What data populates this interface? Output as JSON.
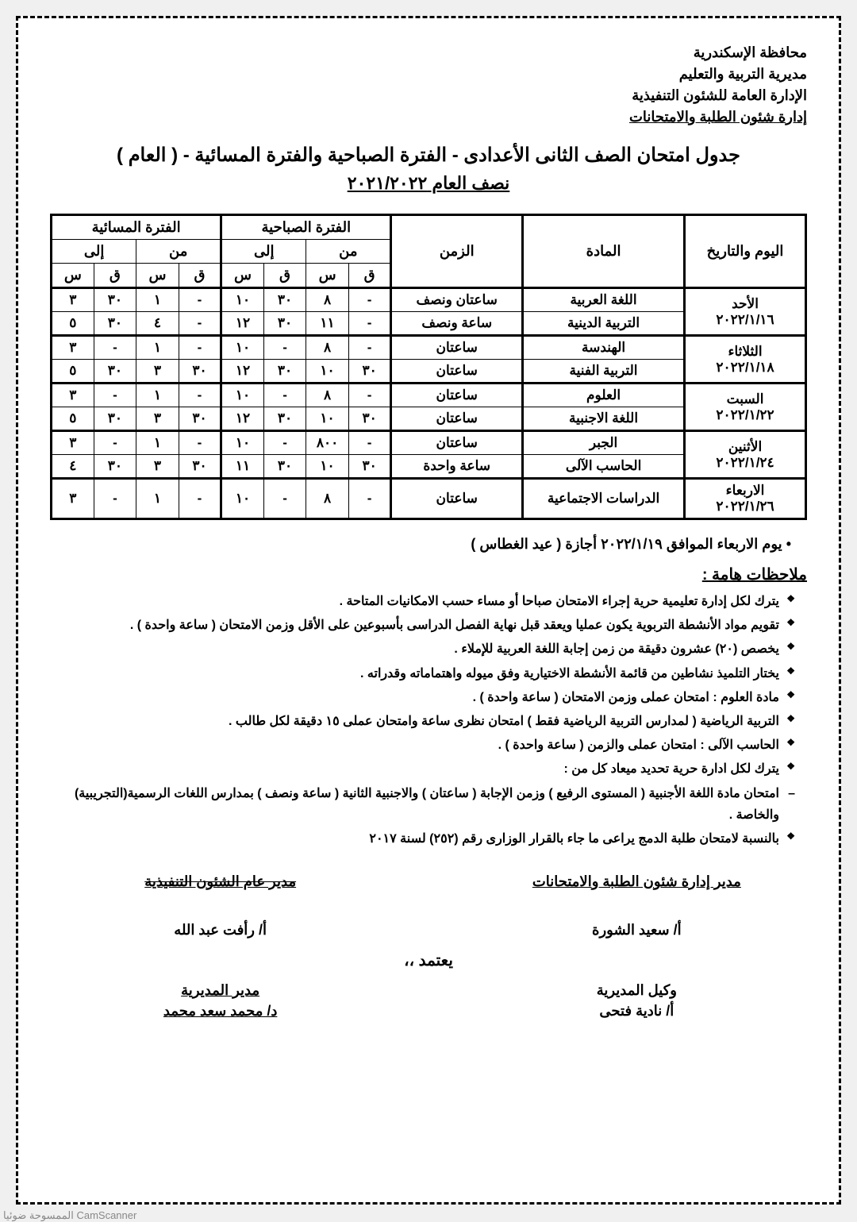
{
  "header": {
    "line1": "محافظة الإسكندرية",
    "line2": "مديرية التربية والتعليم",
    "line3": "الإدارة العامة للشئون التنفيذية",
    "line4": "إدارة شئون الطلبة والامتحانات"
  },
  "title": "جدول امتحان الصف الثانى الأعدادى - الفترة الصباحية والفترة المسائية - ( العام )",
  "subtitle": "نصف العام ٢٠٢١/٢٠٢٢",
  "table": {
    "head": {
      "day_date": "اليوم والتاريخ",
      "subject": "المادة",
      "duration": "الزمن",
      "morning": "الفترة الصباحية",
      "evening": "الفترة المسائية",
      "from": "من",
      "to": "إلى",
      "q": "ق",
      "s": "س"
    },
    "groups": [
      {
        "day": "الأحد",
        "date": "٢٠٢٢/١/١٦",
        "rows": [
          {
            "subject": "اللغة العربية",
            "duration": "ساعتان ونصف",
            "m_from_q": "-",
            "m_from_s": "٨",
            "m_to_q": "٣٠",
            "m_to_s": "١٠",
            "e_from_q": "-",
            "e_from_s": "١",
            "e_to_q": "٣٠",
            "e_to_s": "٣"
          },
          {
            "subject": "التربية الدينية",
            "duration": "ساعة ونصف",
            "m_from_q": "-",
            "m_from_s": "١١",
            "m_to_q": "٣٠",
            "m_to_s": "١٢",
            "e_from_q": "-",
            "e_from_s": "٤",
            "e_to_q": "٣٠",
            "e_to_s": "٥"
          }
        ]
      },
      {
        "day": "الثلاثاء",
        "date": "٢٠٢٢/١/١٨",
        "rows": [
          {
            "subject": "الهندسة",
            "duration": "ساعتان",
            "m_from_q": "-",
            "m_from_s": "٨",
            "m_to_q": "-",
            "m_to_s": "١٠",
            "e_from_q": "-",
            "e_from_s": "١",
            "e_to_q": "-",
            "e_to_s": "٣"
          },
          {
            "subject": "التربية الفنية",
            "duration": "ساعتان",
            "m_from_q": "٣٠",
            "m_from_s": "١٠",
            "m_to_q": "٣٠",
            "m_to_s": "١٢",
            "e_from_q": "٣٠",
            "e_from_s": "٣",
            "e_to_q": "٣٠",
            "e_to_s": "٥"
          }
        ]
      },
      {
        "day": "السبت",
        "date": "٢٠٢٢/١/٢٢",
        "rows": [
          {
            "subject": "العلوم",
            "duration": "ساعتان",
            "m_from_q": "-",
            "m_from_s": "٨",
            "m_to_q": "-",
            "m_to_s": "١٠",
            "e_from_q": "-",
            "e_from_s": "١",
            "e_to_q": "-",
            "e_to_s": "٣"
          },
          {
            "subject": "اللغة الاجنبية",
            "duration": "ساعتان",
            "m_from_q": "٣٠",
            "m_from_s": "١٠",
            "m_to_q": "٣٠",
            "m_to_s": "١٢",
            "e_from_q": "٣٠",
            "e_from_s": "٣",
            "e_to_q": "٣٠",
            "e_to_s": "٥"
          }
        ]
      },
      {
        "day": "الأثنين",
        "date": "٢٠٢٢/١/٢٤",
        "rows": [
          {
            "subject": "الجبر",
            "duration": "ساعتان",
            "m_from_q": "-",
            "m_from_s": "٨٠٠",
            "m_to_q": "-",
            "m_to_s": "١٠",
            "e_from_q": "-",
            "e_from_s": "١",
            "e_to_q": "-",
            "e_to_s": "٣"
          },
          {
            "subject": "الحاسب الآلى",
            "duration": "ساعة واحدة",
            "m_from_q": "٣٠",
            "m_from_s": "١٠",
            "m_to_q": "٣٠",
            "m_to_s": "١١",
            "e_from_q": "٣٠",
            "e_from_s": "٣",
            "e_to_q": "٣٠",
            "e_to_s": "٤"
          }
        ]
      },
      {
        "day": "الاربعاء",
        "date": "٢٠٢٢/١/٢٦",
        "rows": [
          {
            "subject": "الدراسات الاجتماعية",
            "duration": "ساعتان",
            "m_from_q": "-",
            "m_from_s": "٨",
            "m_to_q": "-",
            "m_to_s": "١٠",
            "e_from_q": "-",
            "e_from_s": "١",
            "e_to_q": "-",
            "e_to_s": "٣"
          }
        ]
      }
    ]
  },
  "holiday": "يوم الاربعاء الموافق ٢٠٢٢/١/١٩ أجازة ( عيد الغطاس )",
  "notes_title": "ملاحظات هامة :",
  "notes": [
    "يترك لكل إدارة تعليمية حرية إجراء الامتحان صباحا أو مساء حسب الامكانيات المتاحة .",
    "تقويم مواد الأنشطة التربوية يكون عمليا ويعقد قبل نهاية الفصل الدراسى بأسبوعين على الأقل وزمن الامتحان ( ساعة واحدة ) .",
    "يخصص (٢٠) عشرون دقيقة من زمن إجابة اللغة العربية للإملاء .",
    "يختار التلميذ نشاطين من قائمة الأنشطة الاختيارية وفق ميوله واهتماماته وقدراته .",
    "مادة العلوم : امتحان عملى وزمن الامتحان ( ساعة واحدة ) .",
    "التربية الرياضية ( لمدارس التربية الرياضية فقط ) امتحان نظرى ساعة وامتحان عملى ١٥ دقيقة لكل طالب .",
    "الحاسب الآلى : امتحان عملى والزمن ( ساعة واحدة ) .",
    "يترك لكل ادارة حرية تحديد ميعاد كل من :"
  ],
  "notes_dash": [
    "امتحان مادة اللغة الأجنبية ( المستوى الرفيع ) وزمن الإجابة ( ساعتان ) والاجنبية الثانية ( ساعة ونصف ) بمدارس اللغات الرسمية(التجريبية) والخاصة ."
  ],
  "notes_tail": [
    "بالنسبة لامتحان طلبة الدمج يراعى ما جاء بالقرار الوزارى رقم (٢٥٢) لسنة ٢٠١٧"
  ],
  "sig1": {
    "right_title": "مدير إدارة شئون الطلبة والامتحانات",
    "right_name": "أ/ سعيد الشورة",
    "left_title": "مدير عام الشئون التنفيذية",
    "left_name": "أ/ رأفت عبد الله"
  },
  "approve": "يعتمد ،،",
  "sig2": {
    "right_title": "وكيل المديرية",
    "right_name": "أ/ نادية فتحى",
    "left_title": "مدير المديرية",
    "left_name": "د/ محمد سعد محمد"
  },
  "footer": "الممسوحة ضوئيا بـ CamScanner"
}
